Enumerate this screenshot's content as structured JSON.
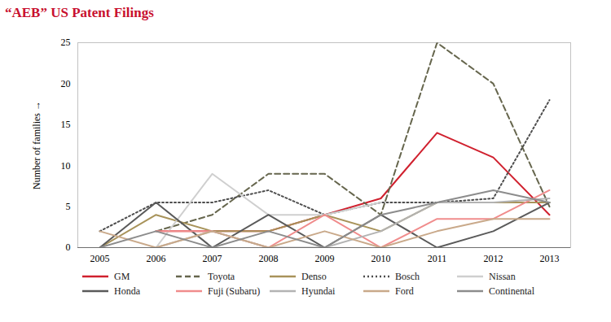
{
  "chart_data": {
    "type": "line",
    "title": "“AEB” US Patent Filings",
    "y_label": "Number of families",
    "categories": [
      "2005",
      "2006",
      "2007",
      "2008",
      "2009",
      "2010",
      "2011",
      "2012",
      "2013"
    ],
    "ylim": [
      0,
      25
    ],
    "yticks": [
      0,
      5,
      10,
      15,
      20,
      25
    ],
    "grid": false,
    "legend": "bottom",
    "series": [
      {
        "name": "GM",
        "color": "#d0202e",
        "line_style": "solid",
        "values": [
          null,
          2,
          2,
          2,
          4,
          6,
          14,
          11,
          4
        ]
      },
      {
        "name": "Toyota",
        "color": "#66664d",
        "line_style": "dashed",
        "values": [
          null,
          2,
          4,
          9,
          9,
          4,
          25,
          20,
          5
        ]
      },
      {
        "name": "Denso",
        "color": "#a8935a",
        "line_style": "solid",
        "values": [
          0,
          4,
          2,
          2,
          4,
          2,
          5.5,
          5.5,
          5.5
        ]
      },
      {
        "name": "Bosch",
        "color": "#4d4d4d",
        "line_style": "dotted",
        "values": [
          2,
          5.5,
          5.5,
          7,
          4,
          5.5,
          5.5,
          6,
          18
        ]
      },
      {
        "name": "Nissan",
        "color": "#cfcfcf",
        "line_style": "solid",
        "values": [
          null,
          0,
          9,
          4,
          4,
          5.5,
          null,
          null,
          null
        ]
      },
      {
        "name": "Honda",
        "color": "#5a5a5a",
        "line_style": "solid",
        "values": [
          0,
          5.5,
          0,
          4,
          0,
          4,
          0,
          2,
          5.5
        ]
      },
      {
        "name": "Fuji (Subaru)",
        "color": "#f08c8c",
        "line_style": "solid",
        "values": [
          null,
          2,
          2,
          0,
          4,
          0,
          3.5,
          3.5,
          7
        ]
      },
      {
        "name": "Hyundai",
        "color": "#b3b3b3",
        "line_style": "solid",
        "values": [
          null,
          0,
          2,
          0,
          0,
          2,
          5.5,
          5.5,
          6
        ]
      },
      {
        "name": "Ford",
        "color": "#c9a98a",
        "line_style": "solid",
        "values": [
          2,
          0,
          2,
          0,
          2,
          0,
          2,
          3.5,
          3.5
        ]
      },
      {
        "name": "Continental",
        "color": "#8c8c8c",
        "line_style": "solid",
        "values": [
          0,
          2,
          0,
          2,
          0,
          4,
          5.5,
          7,
          5.5
        ]
      }
    ]
  }
}
